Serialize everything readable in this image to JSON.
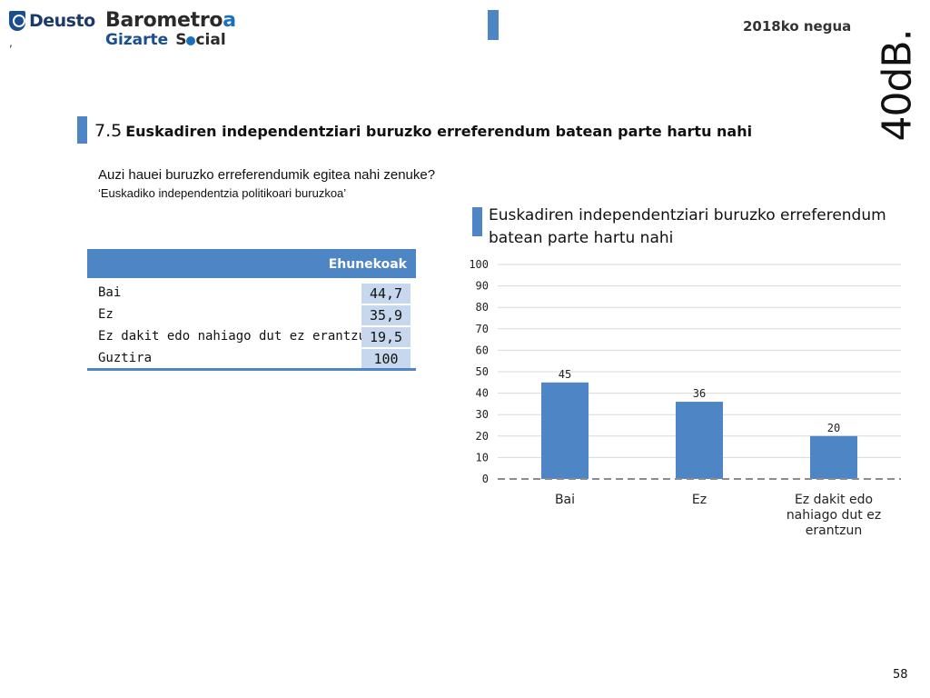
{
  "header": {
    "logo_left": "Deusto",
    "logo_right_line1_a": "Barometro",
    "logo_right_line1_b": "a",
    "logo_right_line2_a": "Gizarte",
    "logo_right_line2_b1": "S",
    "logo_right_line2_b2": "cial",
    "period": "2018ko negua",
    "brand": "40dB.",
    "mark": ","
  },
  "section": {
    "number": "7.5",
    "title": "Euskadiren independentziari buruzko erreferendum batean parte hartu nahi"
  },
  "question": {
    "text": "Auzi hauei buruzko erreferendumik egitea nahi zenuke?",
    "subtext": "‘Euskadiko independentzia politikoari buruzkoa’"
  },
  "table": {
    "header": "Ehunekoak",
    "rows": [
      {
        "label": "Bai",
        "value": "44,7"
      },
      {
        "label": "Ez",
        "value": "35,9"
      },
      {
        "label": "Ez dakit edo nahiago dut ez erantzun",
        "value": "19,5"
      },
      {
        "label": "Guztira",
        "value": "100"
      }
    ]
  },
  "chart_data": {
    "type": "bar",
    "title": "Euskadiren independentziari buruzko erreferendum batean parte hartu nahi",
    "categories": [
      [
        "Bai"
      ],
      [
        "Ez"
      ],
      [
        "Ez dakit edo",
        "nahiago dut ez",
        "erantzun"
      ]
    ],
    "values": [
      45,
      36,
      20
    ],
    "data_labels": [
      "45",
      "36",
      "20"
    ],
    "ylim": [
      0,
      100
    ],
    "yticks": [
      0,
      10,
      20,
      30,
      40,
      50,
      60,
      70,
      80,
      90,
      100
    ],
    "grid": true,
    "colors": {
      "bar": "#4e85c4",
      "grid": "#d9d9d9",
      "baseline": "#8c8c8c"
    }
  },
  "footer": {
    "page_number": "58"
  },
  "colors": {
    "accent": "#4e85c4",
    "cell": "#c7d8ee"
  }
}
